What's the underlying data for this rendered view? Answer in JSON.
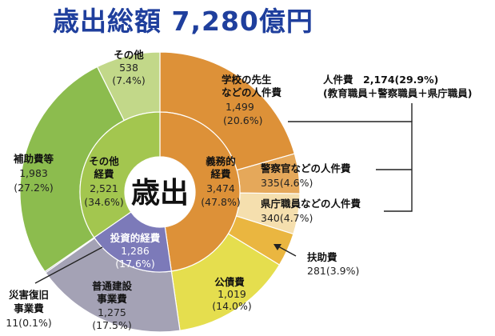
{
  "title": "歳出総額 7,280億円",
  "chart_data": {
    "type": "pie",
    "center_label": "歳出",
    "inner_ring": [
      {
        "name": "義務的経費",
        "value": 3474,
        "percent": "(47.8%)",
        "color": "#dd9138"
      },
      {
        "name": "投資的経費",
        "value": 1286,
        "percent": "(17.6%)",
        "color": "#7c7ab9"
      },
      {
        "name": "その他経費",
        "value": 2521,
        "percent": "(34.6%)",
        "color": "#a3c64f"
      }
    ],
    "outer_ring": [
      {
        "name": "学校の先生などの人件費",
        "value": 1499,
        "percent": "(20.6%)",
        "color": "#dd9138"
      },
      {
        "name": "警察官などの人件費",
        "value": 335,
        "percent": "(4.6%)",
        "color": "#e5a85a"
      },
      {
        "name": "県庁職員などの人件費",
        "value": 340,
        "percent": "(4.7%)",
        "color": "#f5dfae"
      },
      {
        "name": "扶助費",
        "value": 281,
        "percent": "(3.9%)",
        "color": "#eab640"
      },
      {
        "name": "公債費",
        "value": 1019,
        "percent": "(14.0%)",
        "color": "#e5de4e"
      },
      {
        "name": "普通建設事業費",
        "value": 1275,
        "percent": "(17.5%)",
        "color": "#a4a2b5"
      },
      {
        "name": "災害復旧事業費",
        "value": 11,
        "percent": "(0.1%)",
        "color": "#7a7890"
      },
      {
        "name": "補助費等",
        "value": 1983,
        "percent": "(27.2%)",
        "color": "#8cbc4e"
      },
      {
        "name": "その他",
        "value": 538,
        "percent": "(7.4%)",
        "color": "#c2d889"
      }
    ],
    "callout": {
      "title": "人件費　2,174(29.9%)",
      "detail": "(教育職員＋警察職員＋県庁職員)"
    }
  },
  "labels": {
    "sonota_outer": [
      "その他",
      "538",
      "(7.4%)"
    ],
    "teacher": [
      "学校の先生",
      "などの人件費",
      "1,499",
      "(20.6%)"
    ],
    "hojo": [
      "補助費等",
      "1,983",
      "(27.2%)"
    ],
    "sonota_inner": [
      "その他",
      "経費",
      "2,521",
      "(34.6%)"
    ],
    "gimu": [
      "義務的",
      "経費",
      "3,474",
      "(47.8%)"
    ],
    "toushi": [
      "投資的経費",
      "1,286",
      "(17.6%)"
    ],
    "police": [
      "警察官などの人件費",
      "335(4.6%)"
    ],
    "staff": [
      "県庁職員などの人件費",
      "340(4.7%)"
    ],
    "fujo": [
      "扶助費",
      "281(3.9%)"
    ],
    "kousai": [
      "公債費",
      "1,019",
      "(14.0%)"
    ],
    "futsuu": [
      "普通建設",
      "事業費",
      "1,275",
      "(17.5%)"
    ],
    "saigai": [
      "災害復旧",
      "事業費",
      "11(0.1%)"
    ]
  }
}
